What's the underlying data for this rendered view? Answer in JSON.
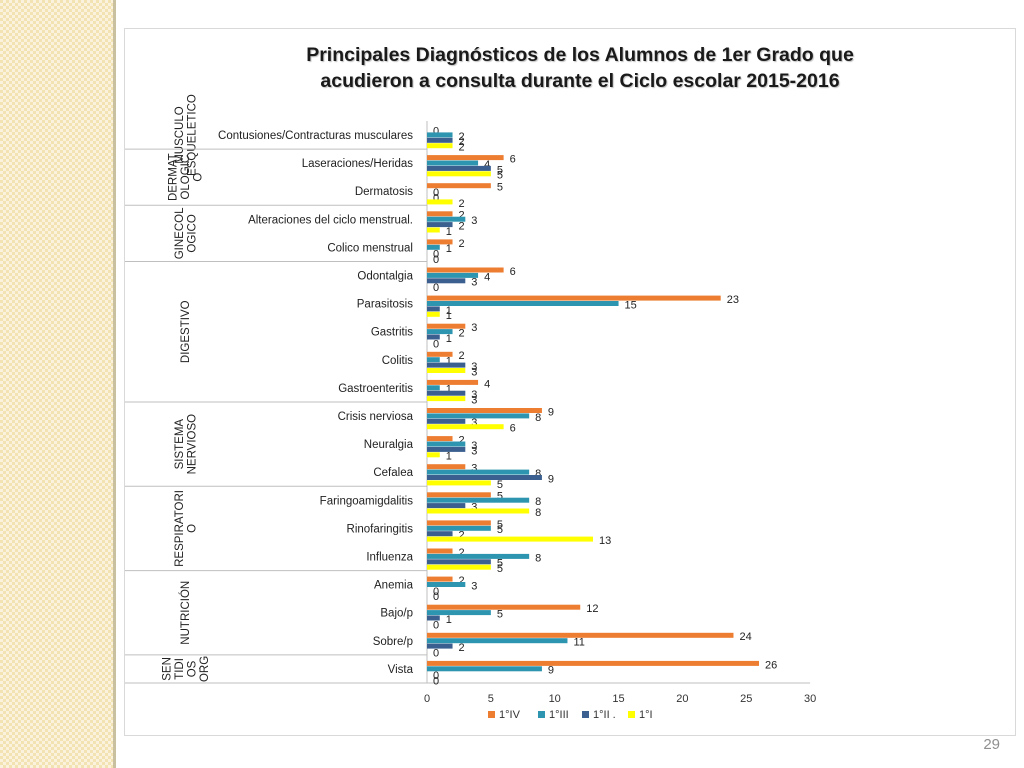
{
  "page_number": "29",
  "chart_data": {
    "type": "bar",
    "orientation": "horizontal",
    "title": [
      "Principales Diagnósticos de los Alumnos de 1er Grado  que",
      "acudieron a consulta durante el Ciclo escolar  2015-2016"
    ],
    "xlim": [
      0,
      30
    ],
    "xticks": [
      "0",
      "5",
      "10",
      "15",
      "20",
      "25",
      "30"
    ],
    "legend_position": "bottom",
    "groups": [
      {
        "label": "MUSCULO ESQUELETICO",
        "lines": [
          "MUSCULO",
          "ESQUELETICO"
        ],
        "count": 1
      },
      {
        "label": "DERMATOLOGICO",
        "lines": [
          "DERMAT",
          "OLOGIC",
          "O"
        ],
        "count": 2
      },
      {
        "label": "GINECOLOGICO",
        "lines": [
          "GINECOL",
          "OGICO"
        ],
        "count": 2
      },
      {
        "label": "DIGESTIVO",
        "lines": [
          "DIGESTIVO"
        ],
        "count": 5
      },
      {
        "label": "SISTEMA NERVIOSO",
        "lines": [
          "SISTEMA",
          "NERVIOSO"
        ],
        "count": 3
      },
      {
        "label": "RESPIRATORIO",
        "lines": [
          "RESPIRATORI",
          "O"
        ],
        "count": 3
      },
      {
        "label": "NUTRICIÓN",
        "lines": [
          "NUTRICIÓN"
        ],
        "count": 3
      },
      {
        "label": "SENTIDIOS ORG",
        "lines": [
          "SEN",
          "TIDI",
          "OS",
          "ORG"
        ],
        "count": 1,
        "sublabel": "."
      }
    ],
    "categories": [
      "Contusiones/Contracturas musculares",
      "Laseraciones/Heridas",
      "Dermatosis",
      "Alteraciones del ciclo menstrual.",
      "Colico menstrual",
      "Odontalgia",
      "Parasitosis",
      "Gastritis",
      "Colitis",
      "Gastroenteritis",
      "Crisis nerviosa",
      "Neuralgia",
      "Cefalea",
      "Faringoamigdalitis",
      "Rinofaringitis",
      "Influenza",
      "Anemia",
      "Bajo/p",
      "Sobre/p",
      "Vista"
    ],
    "series": [
      {
        "name": "1°IV",
        "color": "#ed7d31",
        "values": [
          0,
          6,
          5,
          2,
          2,
          6,
          23,
          3,
          2,
          4,
          9,
          2,
          3,
          5,
          5,
          2,
          2,
          12,
          24,
          26
        ]
      },
      {
        "name": "1°III",
        "color": "#2e95b0",
        "values": [
          2,
          4,
          0,
          3,
          1,
          4,
          15,
          2,
          1,
          1,
          8,
          3,
          8,
          8,
          5,
          8,
          3,
          5,
          11,
          9
        ]
      },
      {
        "name": "1°II .",
        "color": "#3b5f8f",
        "values": [
          2,
          5,
          0,
          2,
          0,
          3,
          1,
          1,
          3,
          3,
          3,
          3,
          9,
          3,
          2,
          5,
          0,
          1,
          2,
          0
        ]
      },
      {
        "name": "1°I",
        "color": "#ffff00",
        "values": [
          2,
          5,
          2,
          1,
          0,
          0,
          1,
          0,
          3,
          3,
          6,
          1,
          5,
          8,
          13,
          5,
          0,
          0,
          0,
          0
        ]
      }
    ]
  }
}
